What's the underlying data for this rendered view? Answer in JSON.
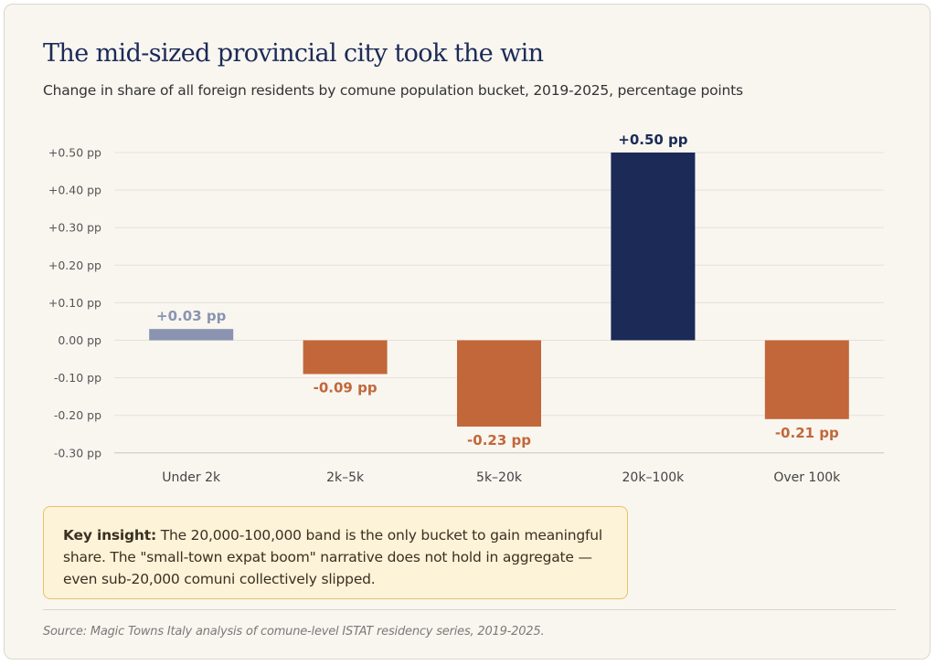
{
  "title": "The mid-sized provincial city took the win",
  "subtitle": "Change in share of all foreign residents by comune population bucket, 2019-2025, percentage points",
  "insight": {
    "label": "Key insight:",
    "text": " The 20,000-100,000 band is the only bucket to gain meaningful share. The \"small-town expat boom\" narrative does not hold in aggregate — even sub-20,000 comuni collectively slipped."
  },
  "source": "Source: Magic Towns Italy analysis of comune-level ISTAT residency series, 2019-2025.",
  "chart_data": {
    "type": "bar",
    "title": "",
    "xlabel": "",
    "ylabel": "",
    "categories": [
      "Under 2k",
      "2k–5k",
      "5k–20k",
      "20k–100k",
      "Over 100k"
    ],
    "values": [
      0.03,
      -0.09,
      -0.23,
      0.5,
      -0.21
    ],
    "data_labels": [
      "+0.03 pp",
      "-0.09 pp",
      "-0.23 pp",
      "+0.50 pp",
      "-0.21 pp"
    ],
    "bar_colors": [
      "#8a94b0",
      "#c2673a",
      "#c2673a",
      "#1b2a57",
      "#c2673a"
    ],
    "label_colors": [
      "#8a94b0",
      "#c2673a",
      "#c2673a",
      "#1b2a57",
      "#c2673a"
    ],
    "yticks": [
      0.5,
      0.4,
      0.3,
      0.2,
      0.1,
      0.0,
      -0.1,
      -0.2,
      -0.3
    ],
    "ytick_labels": [
      "+0.50 pp",
      "+0.40 pp",
      "+0.30 pp",
      "+0.20 pp",
      "+0.10 pp",
      "0.00 pp",
      "-0.10 pp",
      "-0.20 pp",
      "-0.30 pp"
    ],
    "ylim": [
      -0.3,
      0.5
    ],
    "grid": true,
    "legend": "none"
  }
}
